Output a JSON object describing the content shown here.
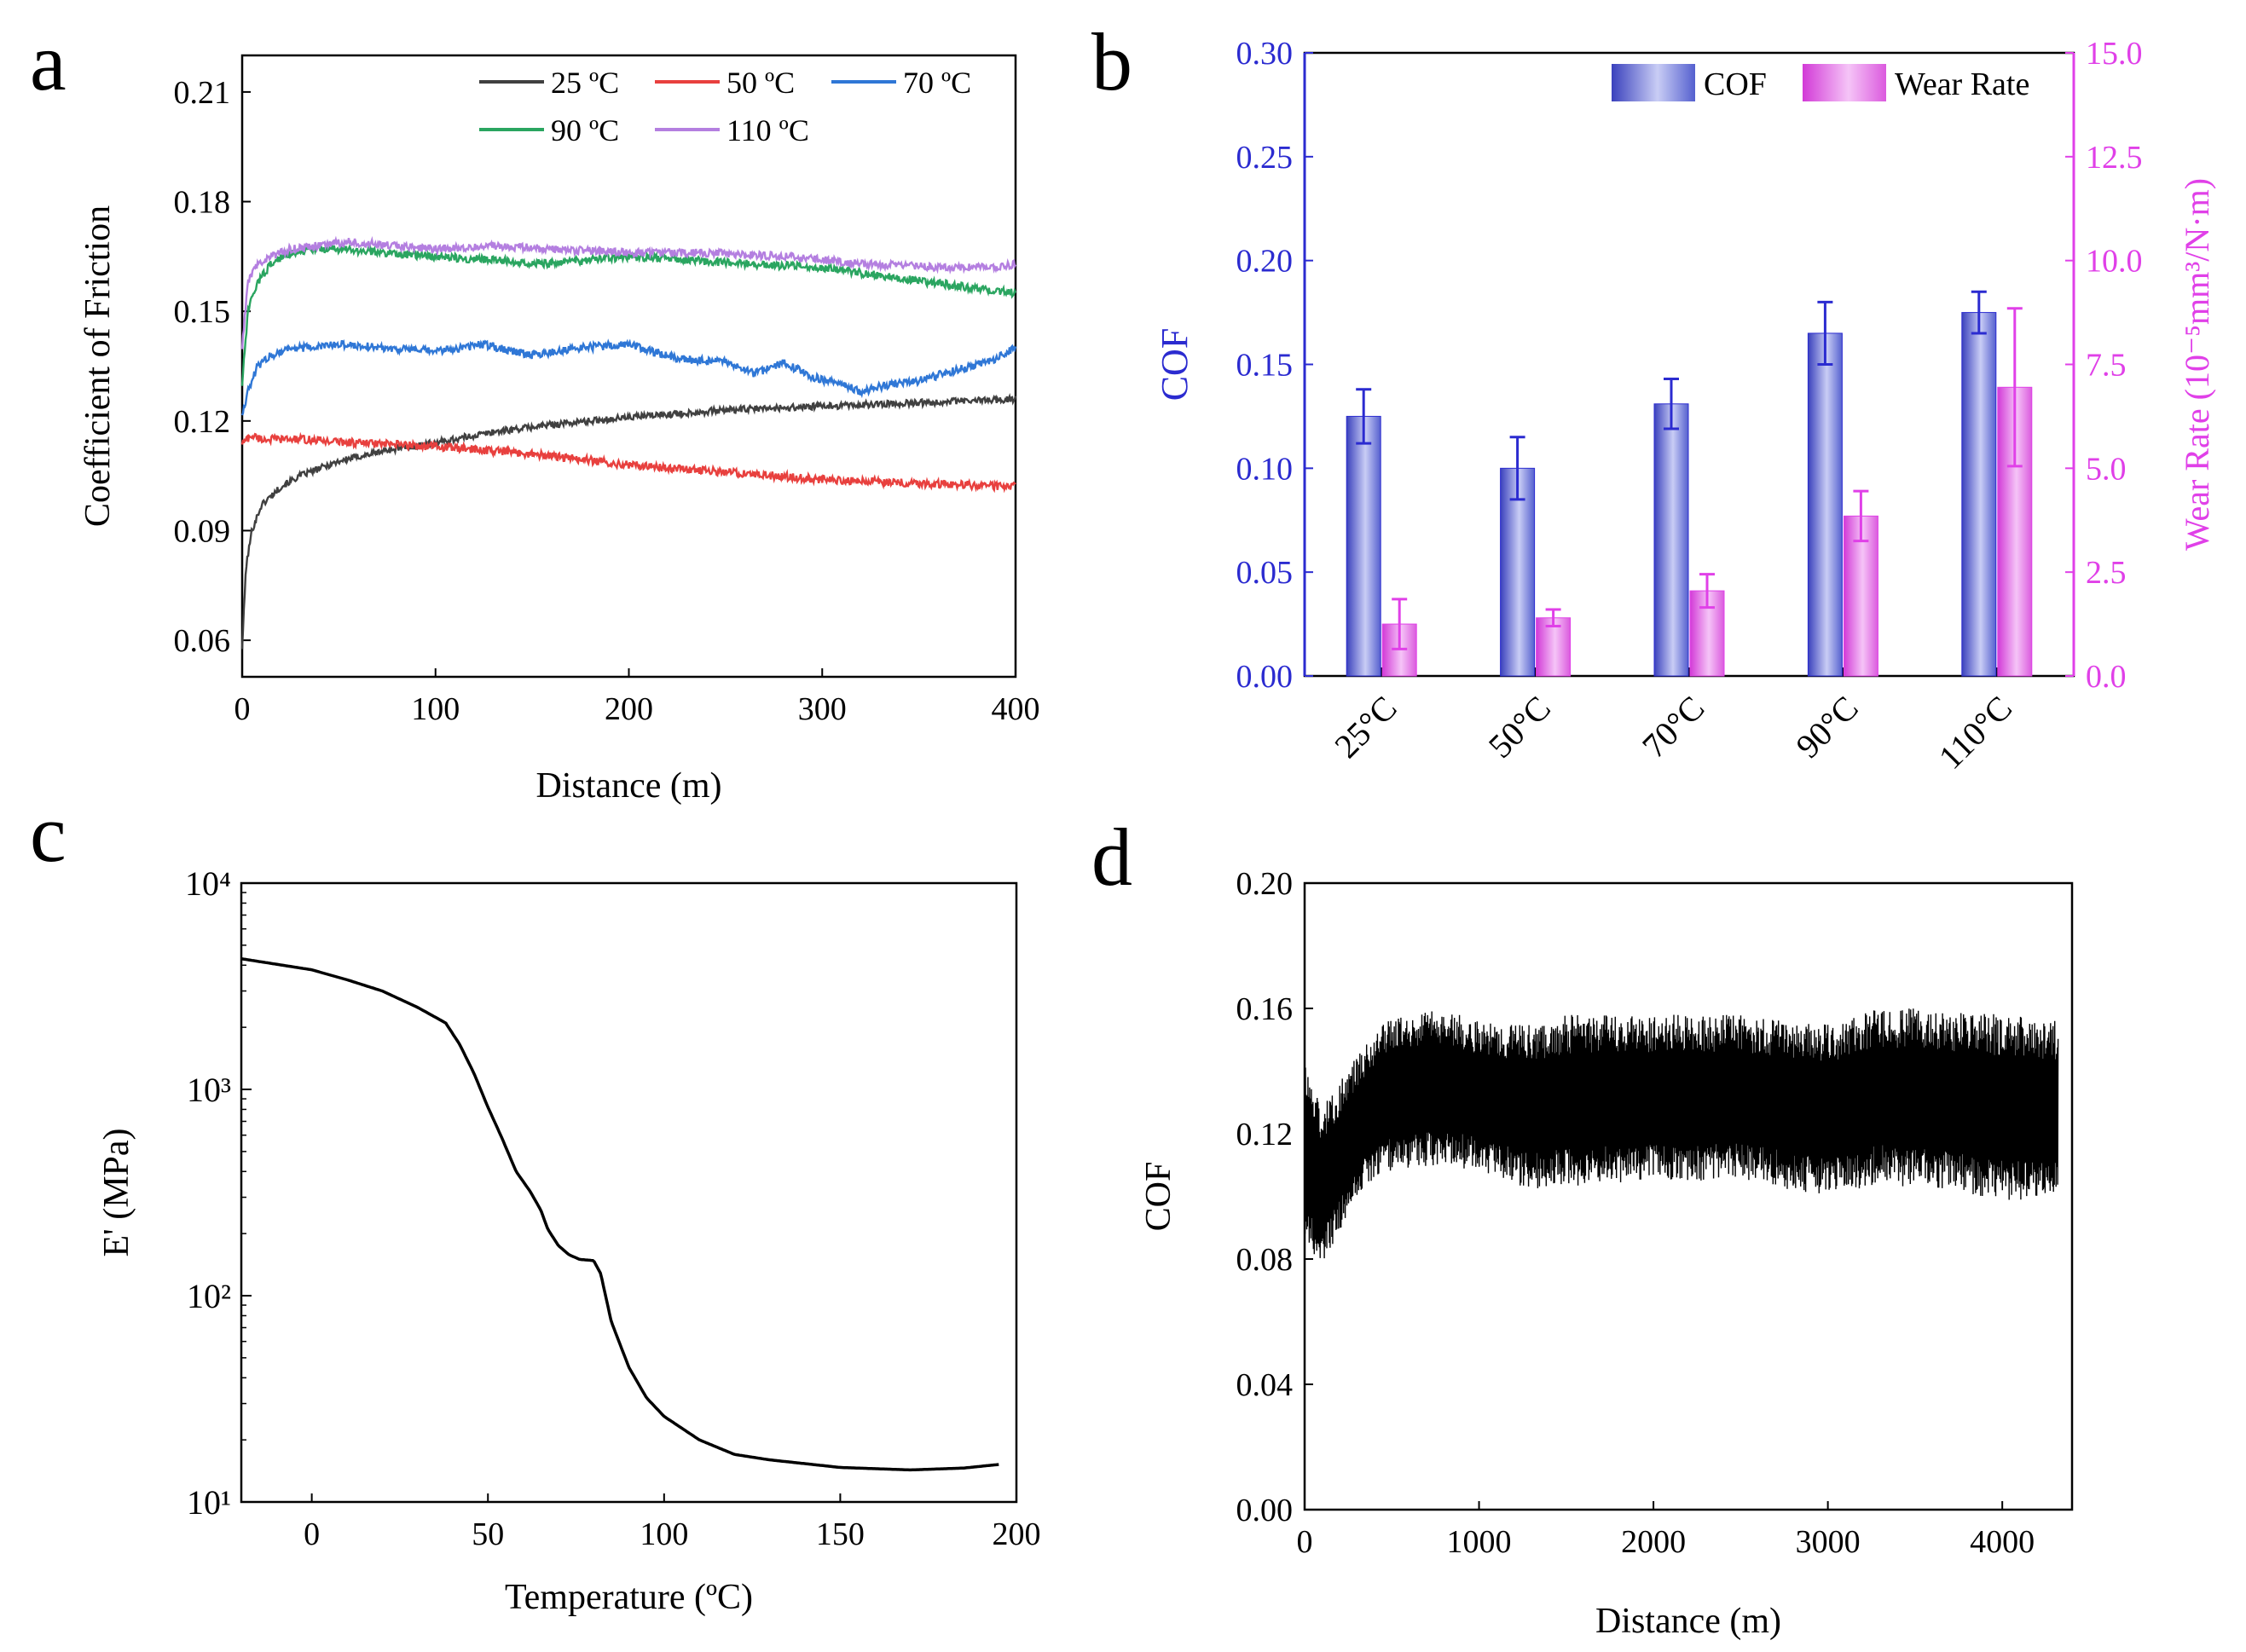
{
  "figure": {
    "panel_labels": [
      "a",
      "b",
      "c",
      "d"
    ]
  },
  "chart_data": [
    {
      "panel": "a",
      "type": "line",
      "xlabel": "Distance (m)",
      "ylabel": "Coefficient of Friction",
      "xlim": [
        0,
        400
      ],
      "ylim": [
        0.05,
        0.22
      ],
      "xticks": [
        0,
        100,
        200,
        300,
        400
      ],
      "xtick_labels": [
        "0",
        "100",
        "200",
        "300",
        "400"
      ],
      "yticks": [
        0.06,
        0.09,
        0.12,
        0.15,
        0.18,
        0.21
      ],
      "ytick_labels": [
        "0.06",
        "0.09",
        "0.12",
        "0.15",
        "0.18",
        "0.21"
      ],
      "legend_position": "top-right",
      "series": [
        {
          "name": "25 ºC",
          "color": "#404040",
          "x": [
            0,
            2,
            5,
            10,
            20,
            30,
            50,
            75,
            100,
            130,
            160,
            200,
            250,
            300,
            350,
            400
          ],
          "y": [
            0.058,
            0.08,
            0.09,
            0.097,
            0.102,
            0.105,
            0.109,
            0.112,
            0.114,
            0.117,
            0.119,
            0.121,
            0.123,
            0.124,
            0.125,
            0.126
          ]
        },
        {
          "name": "50 ºC",
          "color": "#e8403e",
          "x": [
            0,
            5,
            10,
            30,
            60,
            100,
            150,
            200,
            250,
            300,
            350,
            400
          ],
          "y": [
            0.114,
            0.116,
            0.115,
            0.115,
            0.114,
            0.113,
            0.111,
            0.108,
            0.106,
            0.104,
            0.103,
            0.102
          ]
        },
        {
          "name": "70 ºC",
          "color": "#2f77d6",
          "x": [
            0,
            3,
            8,
            15,
            25,
            35,
            50,
            75,
            100,
            125,
            150,
            175,
            200,
            225,
            250,
            265,
            280,
            295,
            310,
            320,
            335,
            350,
            370,
            390,
            400
          ],
          "y": [
            0.122,
            0.128,
            0.135,
            0.138,
            0.14,
            0.14,
            0.141,
            0.14,
            0.139,
            0.141,
            0.138,
            0.14,
            0.141,
            0.137,
            0.136,
            0.133,
            0.136,
            0.132,
            0.13,
            0.128,
            0.13,
            0.131,
            0.134,
            0.137,
            0.14
          ]
        },
        {
          "name": "90 ºC",
          "color": "#2aa560",
          "x": [
            0,
            3,
            8,
            15,
            25,
            35,
            50,
            75,
            100,
            130,
            160,
            200,
            230,
            260,
            300,
            340,
            370,
            400
          ],
          "y": [
            0.13,
            0.15,
            0.158,
            0.163,
            0.166,
            0.167,
            0.167,
            0.166,
            0.165,
            0.164,
            0.163,
            0.165,
            0.164,
            0.163,
            0.162,
            0.159,
            0.157,
            0.155
          ]
        },
        {
          "name": "110 ºC",
          "color": "#b47fe0",
          "x": [
            0,
            3,
            8,
            15,
            25,
            40,
            55,
            75,
            100,
            130,
            160,
            200,
            240,
            280,
            320,
            360,
            390,
            400
          ],
          "y": [
            0.14,
            0.158,
            0.163,
            0.165,
            0.167,
            0.168,
            0.169,
            0.168,
            0.167,
            0.168,
            0.167,
            0.166,
            0.166,
            0.165,
            0.163,
            0.162,
            0.162,
            0.163
          ]
        }
      ]
    },
    {
      "panel": "b",
      "type": "bar",
      "categories": [
        "25°C",
        "50°C",
        "70°C",
        "90°C",
        "110°C"
      ],
      "ylabel": "COF",
      "y2label": "Wear Rate (10⁻⁵mm³/N·m)",
      "ylim": [
        0,
        0.3
      ],
      "y2lim": [
        0,
        15
      ],
      "yticks": [
        0.0,
        0.05,
        0.1,
        0.15,
        0.2,
        0.25,
        0.3
      ],
      "ytick_labels": [
        "0.00",
        "0.05",
        "0.10",
        "0.15",
        "0.20",
        "0.25",
        "0.30"
      ],
      "y2ticks": [
        0,
        2.5,
        5,
        7.5,
        10,
        12.5,
        15
      ],
      "y2tick_labels": [
        "0.0",
        "2.5",
        "5.0",
        "7.5",
        "10.0",
        "12.5",
        "15.0"
      ],
      "legend_position": "top-right",
      "series": [
        {
          "name": "COF",
          "color": "#4a55c8",
          "axis": "left",
          "values": [
            0.125,
            0.1,
            0.131,
            0.165,
            0.175
          ],
          "errors": [
            0.013,
            0.015,
            0.012,
            0.015,
            0.01
          ]
        },
        {
          "name": "Wear Rate",
          "color": "#d75ed8",
          "axis": "right",
          "values": [
            1.25,
            1.4,
            2.05,
            3.85,
            6.95
          ],
          "errors": [
            0.6,
            0.2,
            0.4,
            0.6,
            1.9
          ]
        }
      ]
    },
    {
      "panel": "c",
      "type": "line",
      "xlabel": "Temperature (ºC)",
      "ylabel": "E' (MPa)",
      "yscale": "log",
      "xlim": [
        -20,
        200
      ],
      "ylim": [
        10,
        10000
      ],
      "xticks": [
        0,
        50,
        100,
        150,
        200
      ],
      "xtick_labels": [
        "0",
        "50",
        "100",
        "150",
        "200"
      ],
      "yticks": [
        10,
        100,
        1000,
        10000
      ],
      "ytick_labels": [
        "10¹",
        "10²",
        "10³",
        "10⁴"
      ],
      "series": [
        {
          "color": "#000000",
          "x": [
            -20,
            0,
            10,
            20,
            30,
            38,
            42,
            46,
            50,
            54,
            58,
            62,
            65,
            67,
            70,
            73,
            76,
            80,
            82,
            85,
            90,
            95,
            100,
            110,
            120,
            130,
            150,
            170,
            185,
            195
          ],
          "y": [
            4300,
            3800,
            3400,
            3000,
            2500,
            2100,
            1650,
            1200,
            820,
            580,
            400,
            320,
            260,
            210,
            175,
            158,
            150,
            148,
            128,
            75,
            45,
            32,
            26,
            20,
            17,
            16,
            14.7,
            14.3,
            14.6,
            15.2
          ]
        }
      ]
    },
    {
      "panel": "d",
      "type": "line",
      "xlabel": "Distance (m)",
      "ylabel": "COF",
      "xlim": [
        0,
        4400
      ],
      "ylim": [
        0,
        0.2
      ],
      "xticks": [
        0,
        1000,
        2000,
        3000,
        4000
      ],
      "xtick_labels": [
        "0",
        "1000",
        "2000",
        "3000",
        "4000"
      ],
      "yticks": [
        0.0,
        0.04,
        0.08,
        0.12,
        0.16,
        0.2
      ],
      "ytick_labels": [
        "0.00",
        "0.04",
        "0.08",
        "0.12",
        "0.16",
        "0.20"
      ],
      "series": [
        {
          "color": "#000000",
          "x": [
            0,
            100,
            300,
            500,
            800,
            1000,
            1300,
            1500,
            2000,
            2500,
            3000,
            3300,
            3600,
            4000,
            4320
          ],
          "y_upper": [
            0.144,
            0.128,
            0.145,
            0.158,
            0.16,
            0.156,
            0.155,
            0.158,
            0.158,
            0.158,
            0.155,
            0.16,
            0.16,
            0.158,
            0.156
          ],
          "y_lower": [
            0.085,
            0.078,
            0.1,
            0.108,
            0.11,
            0.108,
            0.102,
            0.103,
            0.105,
            0.105,
            0.1,
            0.104,
            0.102,
            0.098,
            0.1
          ]
        }
      ]
    }
  ]
}
